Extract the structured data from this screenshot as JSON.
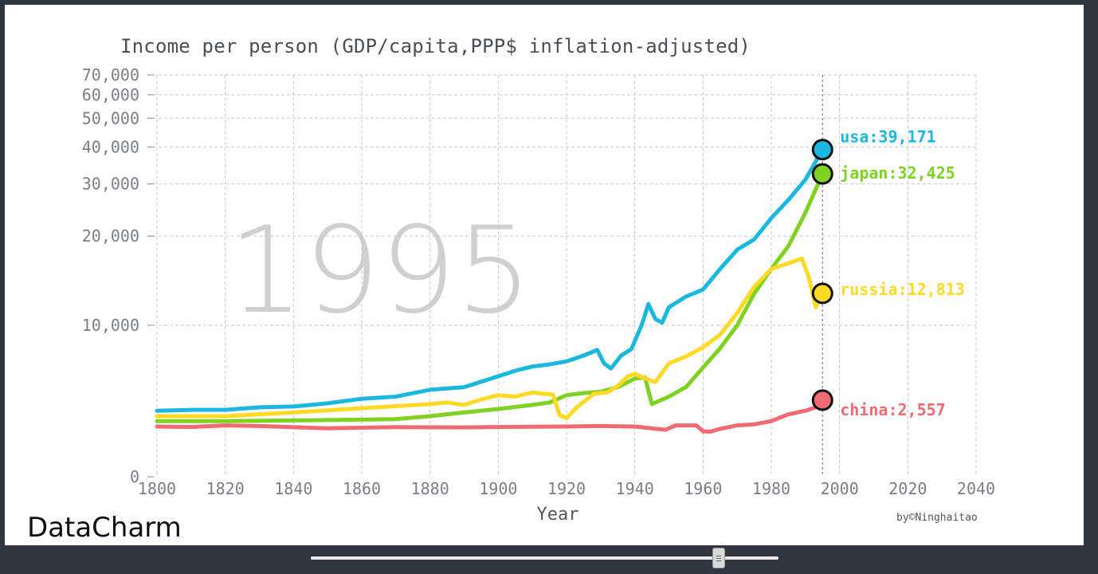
{
  "watermark": "DataCharm",
  "credit": "by©Ninghaitao",
  "slider": {
    "value_year": 1995
  },
  "chart_data": {
    "type": "line",
    "title": "Income per person (GDP/capita,PPP$ inflation-adjusted)",
    "xlabel": "Year",
    "ylabel": "",
    "year_label": "1995",
    "xlim": [
      1800,
      2040
    ],
    "xticks": [
      1800,
      1820,
      1840,
      1860,
      1880,
      1900,
      1920,
      1940,
      1960,
      1980,
      2000,
      2020,
      2040
    ],
    "xtick_labels": [
      "1800",
      "1820",
      "1840",
      "1860",
      "1880",
      "1900",
      "1920",
      "1940",
      "1960",
      "1980",
      "2000",
      "2020",
      "2040"
    ],
    "yscale": "log",
    "yticks": [
      0,
      10000,
      20000,
      30000,
      40000,
      50000,
      60000,
      70000
    ],
    "ytick_labels": [
      "0",
      "10,000",
      "20,000",
      "30,000",
      "40,000",
      "50,000",
      "60,000",
      "70,000"
    ],
    "grid": true,
    "series": [
      {
        "name": "usa",
        "label": "usa:39,171",
        "color": "#1ab7e0",
        "points": [
          [
            1800,
            1900
          ],
          [
            1810,
            1950
          ],
          [
            1820,
            1950
          ],
          [
            1830,
            2100
          ],
          [
            1840,
            2150
          ],
          [
            1850,
            2350
          ],
          [
            1860,
            2650
          ],
          [
            1870,
            2800
          ],
          [
            1880,
            3300
          ],
          [
            1885,
            3400
          ],
          [
            1890,
            3500
          ],
          [
            1900,
            4400
          ],
          [
            1905,
            4900
          ],
          [
            1910,
            5300
          ],
          [
            1915,
            5500
          ],
          [
            1920,
            5800
          ],
          [
            1925,
            6400
          ],
          [
            1929,
            7000
          ],
          [
            1931,
            5600
          ],
          [
            1933,
            5100
          ],
          [
            1936,
            6400
          ],
          [
            1939,
            7100
          ],
          [
            1942,
            10000
          ],
          [
            1944,
            11800
          ],
          [
            1946,
            10500
          ],
          [
            1948,
            10200
          ],
          [
            1950,
            11500
          ],
          [
            1955,
            12500
          ],
          [
            1960,
            13200
          ],
          [
            1965,
            15500
          ],
          [
            1970,
            18000
          ],
          [
            1975,
            19500
          ],
          [
            1980,
            23000
          ],
          [
            1985,
            26500
          ],
          [
            1990,
            31000
          ],
          [
            1995,
            39171
          ]
        ]
      },
      {
        "name": "japan",
        "label": "japan:32,425",
        "color": "#7ed321",
        "points": [
          [
            1800,
            1350
          ],
          [
            1820,
            1350
          ],
          [
            1840,
            1380
          ],
          [
            1860,
            1420
          ],
          [
            1870,
            1450
          ],
          [
            1880,
            1600
          ],
          [
            1890,
            1800
          ],
          [
            1900,
            2000
          ],
          [
            1910,
            2250
          ],
          [
            1915,
            2400
          ],
          [
            1920,
            2900
          ],
          [
            1925,
            3050
          ],
          [
            1930,
            3150
          ],
          [
            1935,
            3500
          ],
          [
            1940,
            4200
          ],
          [
            1943,
            4300
          ],
          [
            1945,
            2300
          ],
          [
            1950,
            2800
          ],
          [
            1955,
            3500
          ],
          [
            1960,
            5200
          ],
          [
            1965,
            7200
          ],
          [
            1970,
            10000
          ],
          [
            1975,
            12800
          ],
          [
            1980,
            15500
          ],
          [
            1985,
            18500
          ],
          [
            1990,
            24000
          ],
          [
            1995,
            32425
          ]
        ]
      },
      {
        "name": "russia",
        "label": "russia:12,813",
        "color": "#ffd924",
        "points": [
          [
            1800,
            1600
          ],
          [
            1820,
            1600
          ],
          [
            1840,
            1800
          ],
          [
            1860,
            2050
          ],
          [
            1880,
            2300
          ],
          [
            1885,
            2400
          ],
          [
            1890,
            2250
          ],
          [
            1895,
            2600
          ],
          [
            1900,
            2900
          ],
          [
            1905,
            2800
          ],
          [
            1910,
            3100
          ],
          [
            1913,
            3000
          ],
          [
            1916,
            2950
          ],
          [
            1918,
            1650
          ],
          [
            1920,
            1500
          ],
          [
            1923,
            2100
          ],
          [
            1928,
            3000
          ],
          [
            1932,
            3100
          ],
          [
            1935,
            3600
          ],
          [
            1938,
            4400
          ],
          [
            1940,
            4600
          ],
          [
            1944,
            4100
          ],
          [
            1946,
            3900
          ],
          [
            1950,
            5600
          ],
          [
            1955,
            6300
          ],
          [
            1960,
            7300
          ],
          [
            1965,
            8800
          ],
          [
            1970,
            11000
          ],
          [
            1975,
            13500
          ],
          [
            1980,
            15500
          ],
          [
            1985,
            16200
          ],
          [
            1989,
            16800
          ],
          [
            1991,
            14500
          ],
          [
            1993,
            11500
          ],
          [
            1995,
            12813
          ]
        ]
      },
      {
        "name": "china",
        "label": "china:2,557",
        "color": "#f06a73",
        "points": [
          [
            1800,
            1100
          ],
          [
            1810,
            1080
          ],
          [
            1820,
            1150
          ],
          [
            1830,
            1120
          ],
          [
            1850,
            1020
          ],
          [
            1870,
            1070
          ],
          [
            1890,
            1060
          ],
          [
            1900,
            1080
          ],
          [
            1920,
            1100
          ],
          [
            1930,
            1120
          ],
          [
            1940,
            1100
          ],
          [
            1949,
            960
          ],
          [
            1952,
            1150
          ],
          [
            1958,
            1150
          ],
          [
            1960,
            900
          ],
          [
            1962,
            880
          ],
          [
            1965,
            1000
          ],
          [
            1970,
            1150
          ],
          [
            1975,
            1200
          ],
          [
            1980,
            1350
          ],
          [
            1985,
            1700
          ],
          [
            1990,
            1900
          ],
          [
            1993,
            2100
          ],
          [
            1995,
            2557
          ]
        ]
      }
    ]
  }
}
